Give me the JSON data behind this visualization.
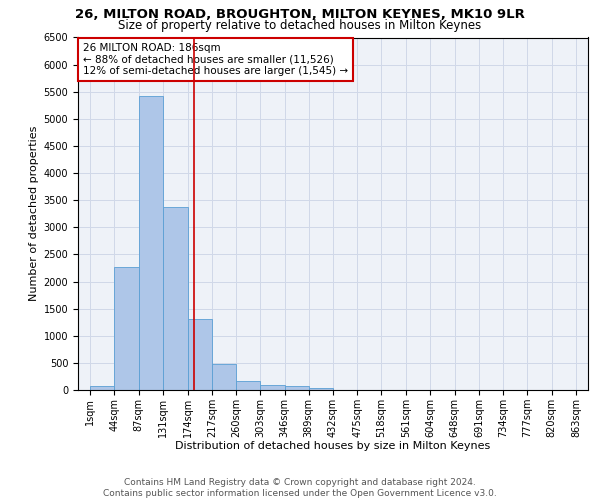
{
  "title1": "26, MILTON ROAD, BROUGHTON, MILTON KEYNES, MK10 9LR",
  "title2": "Size of property relative to detached houses in Milton Keynes",
  "xlabel": "Distribution of detached houses by size in Milton Keynes",
  "ylabel": "Number of detached properties",
  "footer1": "Contains HM Land Registry data © Crown copyright and database right 2024.",
  "footer2": "Contains public sector information licensed under the Open Government Licence v3.0.",
  "annotation_title": "26 MILTON ROAD: 186sqm",
  "annotation_line1": "← 88% of detached houses are smaller (11,526)",
  "annotation_line2": "12% of semi-detached houses are larger (1,545) →",
  "property_size": 186,
  "bar_edges": [
    1,
    44,
    87,
    131,
    174,
    217,
    260,
    303,
    346,
    389,
    432,
    475,
    518,
    561,
    604,
    648,
    691,
    734,
    777,
    820,
    863
  ],
  "bar_values": [
    75,
    2275,
    5425,
    3375,
    1310,
    480,
    160,
    100,
    75,
    45,
    0,
    0,
    0,
    0,
    0,
    0,
    0,
    0,
    0,
    0
  ],
  "bar_color": "#aec6e8",
  "bar_edge_color": "#5a9fd4",
  "vline_color": "#cc0000",
  "vline_x": 186,
  "ylim": [
    0,
    6500
  ],
  "yticks": [
    0,
    500,
    1000,
    1500,
    2000,
    2500,
    3000,
    3500,
    4000,
    4500,
    5000,
    5500,
    6000,
    6500
  ],
  "grid_color": "#d0d8e8",
  "bg_color": "#eef2f8",
  "annotation_box_color": "#ffffff",
  "annotation_box_edge": "#cc0000",
  "title_fontsize": 9.5,
  "subtitle_fontsize": 8.5,
  "axis_label_fontsize": 8,
  "tick_fontsize": 7,
  "annotation_fontsize": 7.5,
  "footer_fontsize": 6.5
}
